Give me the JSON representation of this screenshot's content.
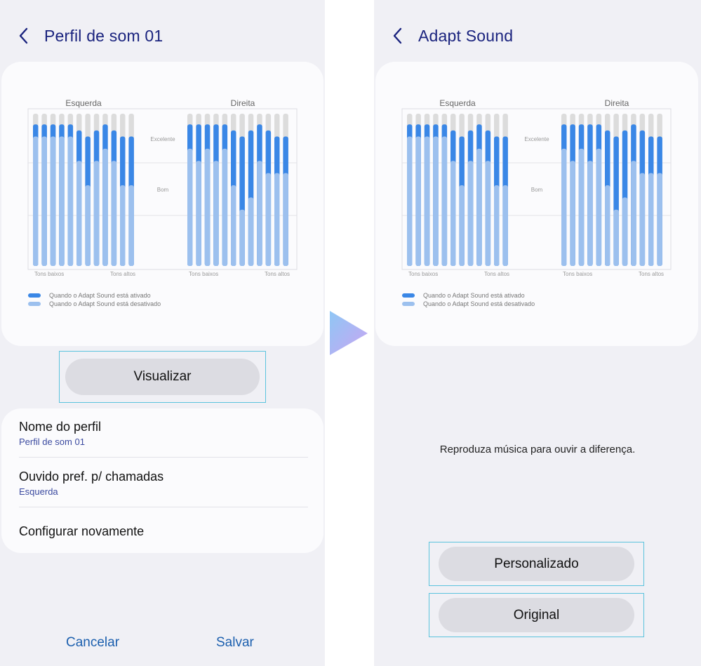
{
  "left_screen": {
    "title": "Perfil de som 01",
    "graph": {
      "left_label": "Esquerda",
      "right_label": "Direita",
      "level_excellent": "Excelente",
      "level_good": "Bom",
      "low_tones": "Tons baixos",
      "high_tones": "Tons altos",
      "legend_on": "Quando o Adapt Sound está ativado",
      "legend_off": "Quando o Adapt Sound está desativado"
    },
    "preview_button": "Visualizar",
    "settings": [
      {
        "title": "Nome do perfil",
        "value": "Perfil de som 01"
      },
      {
        "title": "Ouvido pref. p/ chamadas",
        "value": "Esquerda"
      },
      {
        "title": "Configurar novamente"
      }
    ],
    "cancel_label": "Cancelar",
    "save_label": "Salvar"
  },
  "right_screen": {
    "title": "Adapt Sound",
    "hint": "Reproduza música para ouvir a diferença.",
    "personalized_button": "Personalizado",
    "original_button": "Original"
  },
  "colors": {
    "title": "#1a237e",
    "bar_active": "#3a87e6",
    "bar_inactive": "#9cc0ee",
    "bar_track": "#dcdcdc",
    "highlight": "#5bc3dd",
    "footer_button": "#1b5fae"
  },
  "icons": {
    "back": "chevron-left-icon",
    "transition_arrow": "play-arrow-icon"
  },
  "chart_data": {
    "type": "bar",
    "series": [
      {
        "name": "Quando o Adapt Sound está ativado",
        "left": [
          0.93,
          0.93,
          0.93,
          0.93,
          0.93,
          0.89,
          0.85,
          0.89,
          0.93,
          0.89,
          0.85,
          0.85
        ],
        "right": [
          0.93,
          0.93,
          0.93,
          0.93,
          0.93,
          0.89,
          0.85,
          0.89,
          0.93,
          0.89,
          0.85,
          0.85
        ]
      },
      {
        "name": "Quando o Adapt Sound está desativado",
        "left": [
          0.85,
          0.85,
          0.85,
          0.85,
          0.85,
          0.69,
          0.53,
          0.69,
          0.77,
          0.69,
          0.53,
          0.53
        ],
        "right": [
          0.77,
          0.69,
          0.77,
          0.69,
          0.77,
          0.53,
          0.37,
          0.45,
          0.69,
          0.61,
          0.61,
          0.61
        ]
      }
    ]
  }
}
